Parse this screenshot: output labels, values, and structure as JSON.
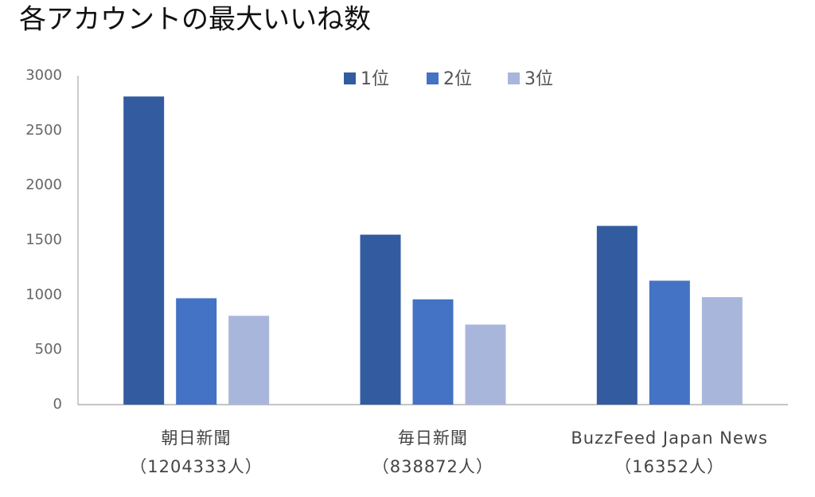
{
  "chart_data": {
    "type": "bar",
    "title": "各アカウントの最大いいね数",
    "categories": [
      "朝日新聞\n（1204333人）",
      "毎日新聞\n（838872人）",
      "BuzzFeed Japan News\n（16352人）"
    ],
    "series": [
      {
        "name": "1位",
        "color": "#335ca0",
        "values": [
          2810,
          1550,
          1630
        ]
      },
      {
        "name": "2位",
        "color": "#4472c4",
        "values": [
          970,
          960,
          1130
        ]
      },
      {
        "name": "3位",
        "color": "#a9b6dc",
        "values": [
          810,
          730,
          980
        ]
      }
    ],
    "ylim": [
      0,
      3000
    ],
    "yticks": [
      0,
      500,
      1000,
      1500,
      2000,
      2500,
      3000
    ],
    "grid": false,
    "legend": "top"
  }
}
